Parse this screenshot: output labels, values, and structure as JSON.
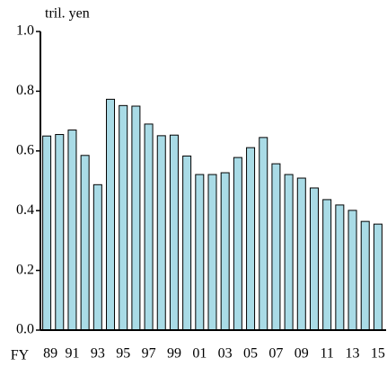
{
  "chart_data": {
    "type": "bar",
    "y_label": "tril. yen",
    "x_label": "FY",
    "categories": [
      "89",
      null,
      "91",
      null,
      "93",
      null,
      "95",
      null,
      "97",
      null,
      "99",
      null,
      "01",
      null,
      "03",
      null,
      "05",
      null,
      "07",
      null,
      "09",
      null,
      "11",
      null,
      "13",
      null,
      "15"
    ],
    "values": [
      0.65,
      0.655,
      0.67,
      0.585,
      0.487,
      0.773,
      0.752,
      0.75,
      0.69,
      0.651,
      0.653,
      0.583,
      0.521,
      0.521,
      0.527,
      0.578,
      0.611,
      0.645,
      0.557,
      0.521,
      0.509,
      0.476,
      0.437,
      0.419,
      0.401,
      0.364,
      0.355
    ],
    "color": "#a9dbe6",
    "ylim": [
      0,
      1
    ],
    "yticks": [
      {
        "value": 0,
        "label": "0.0"
      },
      0.2,
      0.4,
      0.6,
      0.8,
      {
        "value": 1,
        "label": "1.0"
      }
    ],
    "grid": false
  }
}
